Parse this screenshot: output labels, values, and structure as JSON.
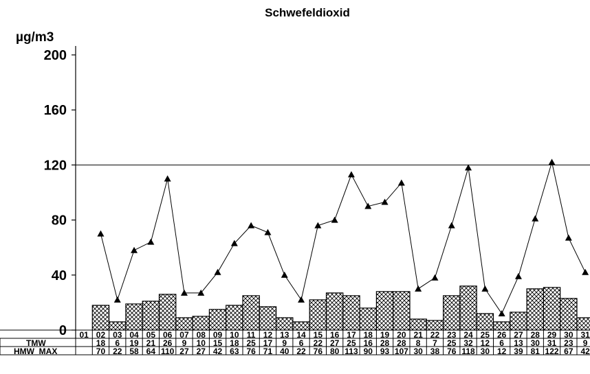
{
  "chart_data": {
    "type": "bar",
    "title": "Schwefeldioxid",
    "ylabel": "µg/m3",
    "ylim": [
      0,
      200
    ],
    "yticks": [
      0,
      40,
      80,
      120,
      160,
      200
    ],
    "reference_line": 120,
    "categories": [
      "01",
      "02",
      "03",
      "04",
      "05",
      "06",
      "07",
      "08",
      "09",
      "10",
      "11",
      "12",
      "13",
      "14",
      "15",
      "16",
      "17",
      "18",
      "19",
      "20",
      "21",
      "22",
      "23",
      "24",
      "25",
      "26",
      "27",
      "28",
      "29",
      "30",
      "31"
    ],
    "series": [
      {
        "name": "TMW",
        "type": "bar",
        "values": [
          null,
          18,
          6,
          19,
          21,
          26,
          9,
          10,
          15,
          18,
          25,
          17,
          9,
          6,
          22,
          27,
          25,
          16,
          28,
          28,
          8,
          7,
          25,
          32,
          12,
          6,
          13,
          30,
          31,
          23,
          9
        ],
        "labels": [
          "",
          "18",
          "6",
          "19",
          "21",
          "26",
          "9",
          "10",
          "15",
          "18",
          "25",
          "17",
          "9",
          "6",
          "22",
          "27",
          "25",
          "16",
          "28",
          "28",
          "8",
          "7",
          "25",
          "32",
          "12",
          "6",
          "13",
          "30",
          "31",
          "23",
          "9"
        ]
      },
      {
        "name": "HMW_MAX",
        "type": "line",
        "values": [
          null,
          70,
          22,
          58,
          64,
          110,
          27,
          27,
          42,
          63,
          76,
          71,
          40,
          22,
          76,
          80,
          113,
          90,
          93,
          107,
          30,
          38,
          76,
          118,
          30,
          12,
          39,
          81,
          122,
          67,
          42
        ],
        "labels": [
          "",
          "70",
          "22",
          "58",
          "64",
          "110",
          "27",
          "27",
          "42",
          "63",
          "76",
          "71",
          "40",
          "22",
          "76",
          "80",
          "113",
          "90",
          "93",
          "107",
          "30",
          "38",
          "76",
          "118",
          "30",
          "12",
          "39",
          "81",
          "122",
          "67",
          "42"
        ]
      }
    ],
    "grid": false,
    "legend": "none"
  }
}
